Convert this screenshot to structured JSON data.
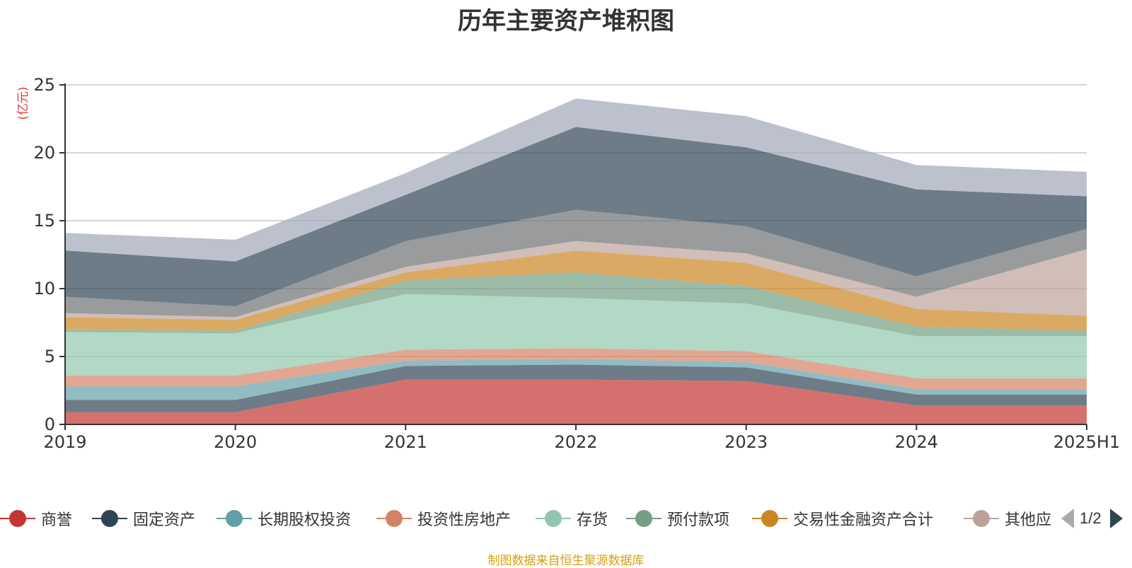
{
  "chart_data": {
    "type": "area",
    "stacked": true,
    "title": "历年主要资产堆积图",
    "ylabel": "(亿元)",
    "xlabel": "",
    "ylim": [
      0,
      25
    ],
    "yticks": [
      0,
      5,
      10,
      15,
      20,
      25
    ],
    "categories": [
      "2019",
      "2020",
      "2021",
      "2022",
      "2023",
      "2024",
      "2025H1"
    ],
    "grid": true,
    "legend_position": "bottom",
    "legend_page": "1/2",
    "series": [
      {
        "name": "商誉",
        "color": "#c23531",
        "values": [
          0.9,
          0.9,
          3.3,
          3.3,
          3.2,
          1.4,
          1.4
        ]
      },
      {
        "name": "固定资产",
        "color": "#2f4554",
        "values": [
          0.9,
          0.9,
          1.0,
          1.1,
          1.0,
          0.8,
          0.8
        ]
      },
      {
        "name": "长期股权投资",
        "color": "#61a0a8",
        "values": [
          1.0,
          1.0,
          0.4,
          0.4,
          0.4,
          0.4,
          0.4
        ]
      },
      {
        "name": "投资性房地产",
        "color": "#d48265",
        "values": [
          0.8,
          0.8,
          0.8,
          0.8,
          0.8,
          0.8,
          0.8
        ]
      },
      {
        "name": "存货",
        "color": "#91c7ae",
        "values": [
          3.2,
          3.1,
          4.1,
          3.7,
          3.5,
          3.1,
          3.1
        ]
      },
      {
        "name": "预付款项",
        "color": "#749f83",
        "values": [
          0.2,
          0.2,
          1.0,
          1.9,
          1.3,
          0.7,
          0.4
        ]
      },
      {
        "name": "交易性金融资产合计",
        "color": "#ca8622",
        "values": [
          0.9,
          0.8,
          0.6,
          1.6,
          1.7,
          1.3,
          1.1
        ]
      },
      {
        "name": "其他应收款",
        "color": "#bda29a",
        "values": [
          0.3,
          0.2,
          0.4,
          0.7,
          0.7,
          0.9,
          4.9
        ]
      },
      {
        "name": "",
        "color": "#6e7074",
        "values": [
          1.2,
          0.8,
          1.9,
          2.3,
          2.0,
          1.5,
          1.5
        ]
      },
      {
        "name": "",
        "color": "#2f4554",
        "values": [
          3.4,
          3.3,
          3.4,
          6.1,
          5.8,
          6.4,
          2.4
        ]
      },
      {
        "name": "",
        "color": "#a0a7b8",
        "values": [
          1.3,
          1.6,
          1.6,
          2.1,
          2.3,
          1.8,
          1.8
        ]
      }
    ],
    "visible_legend_labels": [
      "商誉",
      "固定资产",
      "长期股权投资",
      "投资性房地产",
      "存货",
      "预付款项",
      "交易性金融资产合计",
      "其他应"
    ]
  },
  "footer": {
    "source": "制图数据来自恒生聚源数据库"
  }
}
